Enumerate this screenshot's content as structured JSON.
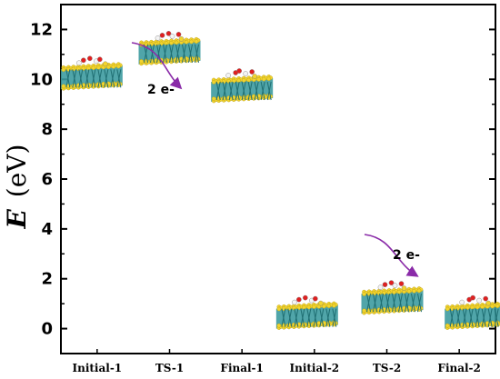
{
  "chart_data": {
    "type": "scatter",
    "title": "",
    "xlabel": "",
    "ylabel": "E (eV)",
    "ylabel_parts": {
      "symbol": "E",
      "unit": "(eV)"
    },
    "categories": [
      "Initial-1",
      "TS-1",
      "Final-1",
      "Initial-2",
      "TS-2",
      "Final-2"
    ],
    "values": [
      10.0,
      11.0,
      9.5,
      0.4,
      1.0,
      0.4
    ],
    "ylim": [
      -1,
      13
    ],
    "yticks": [
      "0",
      "2",
      "4",
      "6",
      "8",
      "10",
      "12"
    ],
    "grid": false,
    "legend": "none",
    "annotations": [
      {
        "text": "2 e-",
        "near": "TS-1"
      },
      {
        "text": "2 e-",
        "near": "TS-2"
      }
    ],
    "marker_style": "molecular-structure-image"
  },
  "colors": {
    "sulfur": "#f2d42e",
    "metal": "#3d9ba0",
    "arrow": "#8a2ba8",
    "oxygen": "#e02020",
    "hydrogen": "#f4f4f4"
  }
}
